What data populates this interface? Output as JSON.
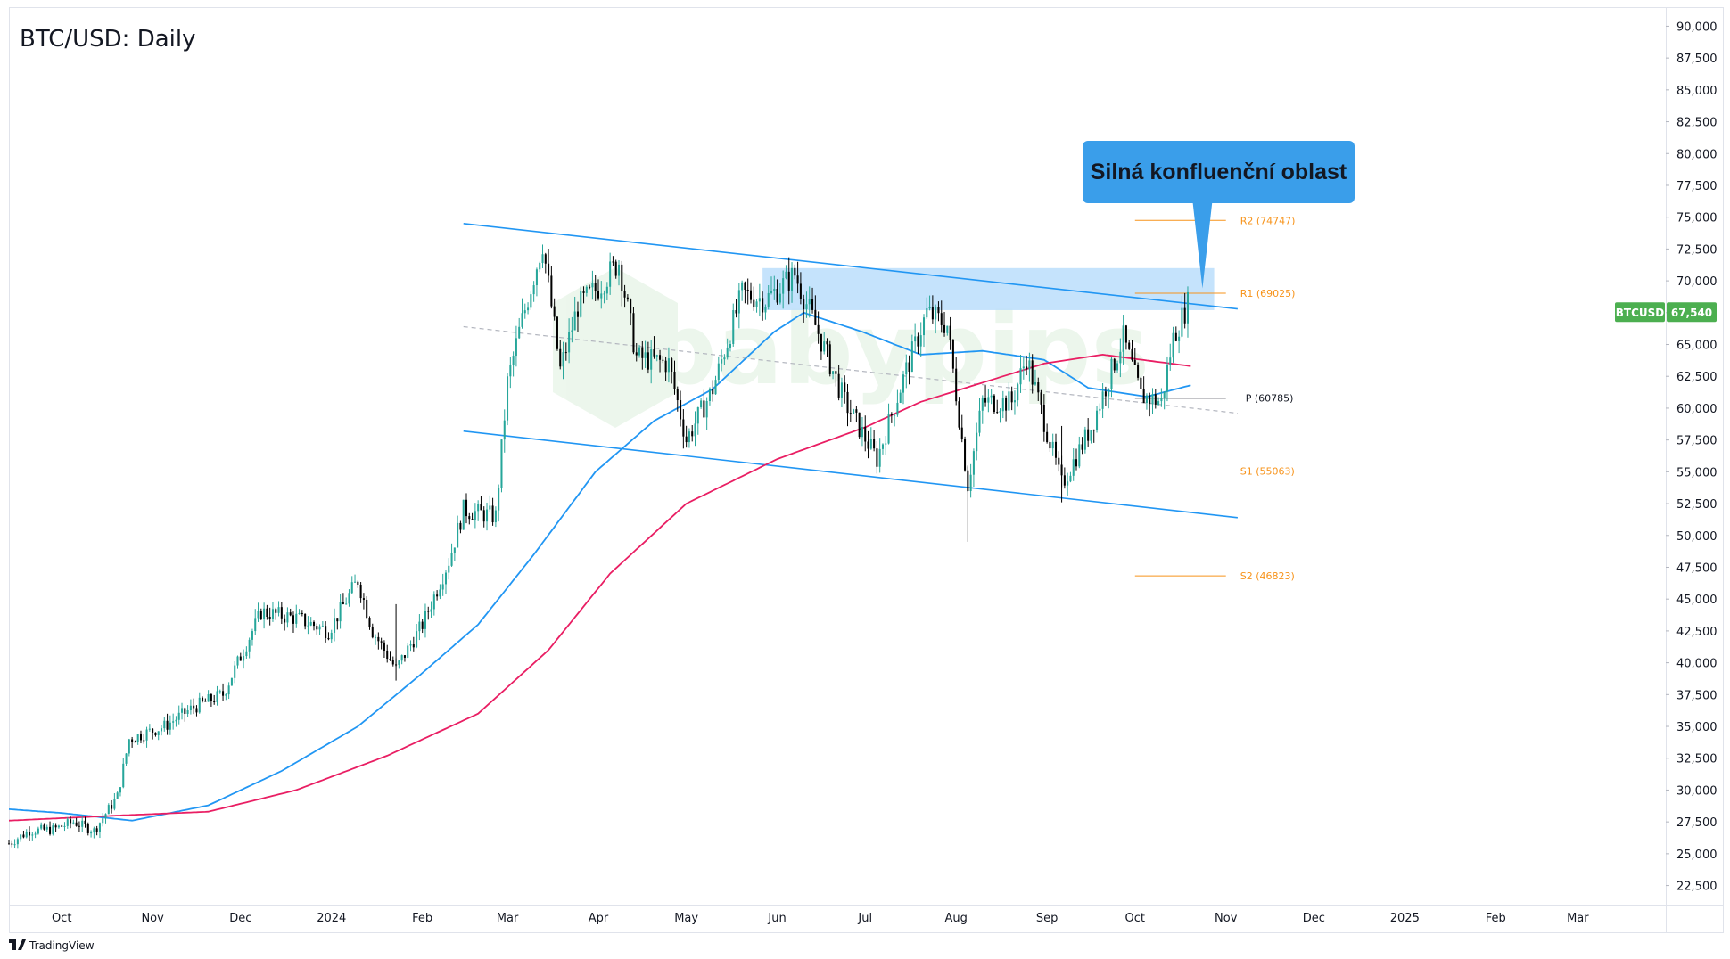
{
  "chart_data": {
    "type": "candlestick",
    "title": "BTC/USD: Daily",
    "symbol": "BTCUSD",
    "last_price": "67,540",
    "y_axis": {
      "range": [
        21000,
        91500
      ],
      "ticks": [
        "22,500",
        "25,000",
        "27,500",
        "30,000",
        "32,500",
        "35,000",
        "37,500",
        "40,000",
        "42,500",
        "45,000",
        "47,500",
        "50,000",
        "52,500",
        "55,000",
        "57,500",
        "60,000",
        "62,500",
        "65,000",
        "67,500",
        "70,000",
        "72,500",
        "75,000",
        "77,500",
        "80,000",
        "82,500",
        "85,000",
        "87,500",
        "90,000"
      ]
    },
    "x_axis": {
      "range": [
        "2023-09-13",
        "2025-03-31"
      ],
      "ticks": [
        {
          "date": "2023-10-01",
          "label": "Oct"
        },
        {
          "date": "2023-11-01",
          "label": "Nov"
        },
        {
          "date": "2023-12-01",
          "label": "Dec"
        },
        {
          "date": "2024-01-01",
          "label": "2024"
        },
        {
          "date": "2024-02-01",
          "label": "Feb"
        },
        {
          "date": "2024-03-01",
          "label": "Mar"
        },
        {
          "date": "2024-04-01",
          "label": "Apr"
        },
        {
          "date": "2024-05-01",
          "label": "May"
        },
        {
          "date": "2024-06-01",
          "label": "Jun"
        },
        {
          "date": "2024-07-01",
          "label": "Jul"
        },
        {
          "date": "2024-08-01",
          "label": "Aug"
        },
        {
          "date": "2024-09-01",
          "label": "Sep"
        },
        {
          "date": "2024-10-01",
          "label": "Oct"
        },
        {
          "date": "2024-11-01",
          "label": "Nov"
        },
        {
          "date": "2024-12-01",
          "label": "Dec"
        },
        {
          "date": "2025-01-01",
          "label": "2025"
        },
        {
          "date": "2025-02-01",
          "label": "Feb"
        },
        {
          "date": "2025-03-01",
          "label": "Mar"
        }
      ]
    },
    "price_path": [
      [
        "2023-09-13",
        25800
      ],
      [
        "2023-09-20",
        26800
      ],
      [
        "2023-09-28",
        26900
      ],
      [
        "2023-10-05",
        27500
      ],
      [
        "2023-10-12",
        26800
      ],
      [
        "2023-10-20",
        29500
      ],
      [
        "2023-10-24",
        34000
      ],
      [
        "2023-11-05",
        35000
      ],
      [
        "2023-11-15",
        36500
      ],
      [
        "2023-11-25",
        37500
      ],
      [
        "2023-12-04",
        42000
      ],
      [
        "2023-12-08",
        44000
      ],
      [
        "2023-12-20",
        43500
      ],
      [
        "2023-12-31",
        42500
      ],
      [
        "2024-01-10",
        46500
      ],
      [
        "2024-01-15",
        42500
      ],
      [
        "2024-01-23",
        39500
      ],
      [
        "2024-02-01",
        43000
      ],
      [
        "2024-02-10",
        48000
      ],
      [
        "2024-02-15",
        52000
      ],
      [
        "2024-02-26",
        51500
      ],
      [
        "2024-03-01",
        62000
      ],
      [
        "2024-03-05",
        66000
      ],
      [
        "2024-03-13",
        73000
      ],
      [
        "2024-03-19",
        63000
      ],
      [
        "2024-03-25",
        68000
      ],
      [
        "2024-04-01",
        69500
      ],
      [
        "2024-04-08",
        71500
      ],
      [
        "2024-04-14",
        64000
      ],
      [
        "2024-04-25",
        63500
      ],
      [
        "2024-05-01",
        57500
      ],
      [
        "2024-05-10",
        61500
      ],
      [
        "2024-05-20",
        69000
      ],
      [
        "2024-05-28",
        68500
      ],
      [
        "2024-06-07",
        70500
      ],
      [
        "2024-06-14",
        66500
      ],
      [
        "2024-06-24",
        60500
      ],
      [
        "2024-07-05",
        56000
      ],
      [
        "2024-07-15",
        63000
      ],
      [
        "2024-07-22",
        67500
      ],
      [
        "2024-07-29",
        66500
      ],
      [
        "2024-08-05",
        54000
      ],
      [
        "2024-08-10",
        60500
      ],
      [
        "2024-08-20",
        60500
      ],
      [
        "2024-08-25",
        64000
      ],
      [
        "2024-09-06",
        54000
      ],
      [
        "2024-09-16",
        58500
      ],
      [
        "2024-09-27",
        65500
      ],
      [
        "2024-10-03",
        61000
      ],
      [
        "2024-10-10",
        60500
      ],
      [
        "2024-10-14",
        65500
      ],
      [
        "2024-10-19",
        68200
      ]
    ],
    "sma_blue": [
      [
        "2023-09-13",
        28500
      ],
      [
        "2023-10-01",
        28200
      ],
      [
        "2023-10-25",
        27600
      ],
      [
        "2023-11-20",
        28800
      ],
      [
        "2023-12-15",
        31500
      ],
      [
        "2024-01-10",
        35000
      ],
      [
        "2024-01-31",
        39000
      ],
      [
        "2024-02-20",
        43000
      ],
      [
        "2024-03-10",
        48500
      ],
      [
        "2024-03-31",
        55000
      ],
      [
        "2024-04-20",
        59000
      ],
      [
        "2024-05-10",
        61500
      ],
      [
        "2024-05-31",
        66000
      ],
      [
        "2024-06-10",
        67500
      ],
      [
        "2024-06-30",
        66000
      ],
      [
        "2024-07-20",
        64200
      ],
      [
        "2024-08-10",
        64500
      ],
      [
        "2024-08-31",
        63800
      ],
      [
        "2024-09-15",
        61600
      ],
      [
        "2024-10-05",
        60900
      ],
      [
        "2024-10-20",
        61800
      ]
    ],
    "sma_magenta": [
      [
        "2023-09-13",
        27600
      ],
      [
        "2023-10-20",
        28000
      ],
      [
        "2023-11-20",
        28300
      ],
      [
        "2023-12-20",
        30000
      ],
      [
        "2024-01-20",
        32700
      ],
      [
        "2024-02-20",
        36000
      ],
      [
        "2024-03-15",
        41000
      ],
      [
        "2024-04-05",
        47000
      ],
      [
        "2024-05-01",
        52500
      ],
      [
        "2024-06-01",
        56000
      ],
      [
        "2024-07-01",
        58500
      ],
      [
        "2024-07-20",
        60500
      ],
      [
        "2024-08-10",
        62000
      ],
      [
        "2024-08-31",
        63500
      ],
      [
        "2024-09-20",
        64200
      ],
      [
        "2024-10-20",
        63300
      ]
    ],
    "channel_upper": [
      [
        "2024-02-15",
        74500
      ],
      [
        "2024-11-05",
        67800
      ]
    ],
    "channel_lower": [
      [
        "2024-02-15",
        58200
      ],
      [
        "2024-11-05",
        51400
      ]
    ],
    "channel_mid": [
      [
        "2024-02-15",
        66400
      ],
      [
        "2024-11-05",
        59600
      ]
    ],
    "resistance_zone": {
      "x0": "2024-05-27",
      "x1": "2024-10-28",
      "y0": 67700,
      "y1": 71000
    },
    "pivots": [
      {
        "label": "R2 (74747)",
        "value": 74747,
        "kind": "resistance"
      },
      {
        "label": "R1 (69025)",
        "value": 69025,
        "kind": "resistance"
      },
      {
        "label": "P (60785)",
        "value": 60785,
        "kind": "pivot"
      },
      {
        "label": "S1 (55063)",
        "value": 55063,
        "kind": "support"
      },
      {
        "label": "S2 (46823)",
        "value": 46823,
        "kind": "support"
      }
    ],
    "annotation": {
      "text": "Silná konfluenční oblast",
      "points_to": [
        "2024-10-24",
        69400
      ]
    },
    "colors": {
      "up": "#26a69a",
      "down": "#000000",
      "sma_blue": "#2196f3",
      "sma_magenta": "#e91e63",
      "channel": "#2196f3",
      "pivot": "#f7931a",
      "callout_bg": "#3a9eea",
      "badge_bg": "#4caf50",
      "zone": "#bbdefb"
    }
  },
  "watermark": {
    "text": "babypips"
  },
  "footer": {
    "brand": "TradingView"
  }
}
